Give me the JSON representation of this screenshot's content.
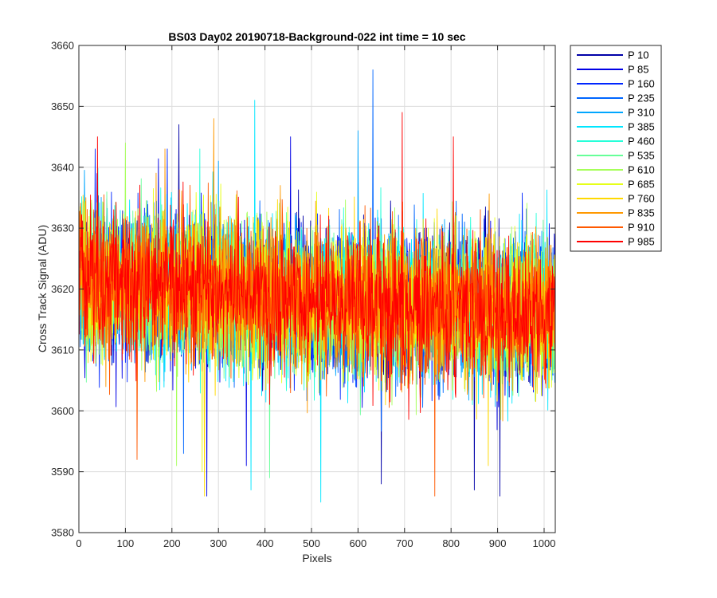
{
  "chart_data": {
    "type": "line",
    "title": "BS03 Day02 20190718-Background-022 int time = 10 sec",
    "xlabel": "Pixels",
    "ylabel": "Cross Track Signal (ADU)",
    "xlim": [
      0,
      1024
    ],
    "ylim": [
      3580,
      3660
    ],
    "xticks": [
      0,
      100,
      200,
      300,
      400,
      500,
      600,
      700,
      800,
      900,
      1000
    ],
    "yticks": [
      3580,
      3590,
      3600,
      3610,
      3620,
      3630,
      3640,
      3650,
      3660
    ],
    "grid": true,
    "legend_location": "outside-top-right",
    "noise": {
      "mean_start": 3622,
      "mean_mid": 3618,
      "mean_end": 3616,
      "std": 6
    },
    "series": [
      {
        "name": "P 10",
        "color": "#0000a8",
        "spikes": [
          [
            215,
            3647
          ],
          [
            650,
            3588
          ],
          [
            850,
            3587
          ],
          [
            905,
            3586
          ]
        ]
      },
      {
        "name": "P 85",
        "color": "#0000e6",
        "spikes": [
          [
            275,
            3586
          ],
          [
            455,
            3645
          ],
          [
            360,
            3591
          ]
        ]
      },
      {
        "name": "P 160",
        "color": "#0026ff",
        "spikes": [
          [
            35,
            3643
          ],
          [
            190,
            3643
          ]
        ]
      },
      {
        "name": "P 235",
        "color": "#0066ff",
        "spikes": [
          [
            632,
            3656
          ],
          [
            225,
            3593
          ]
        ]
      },
      {
        "name": "P 310",
        "color": "#00a6ff",
        "spikes": [
          [
            300,
            3641
          ],
          [
            600,
            3646
          ]
        ]
      },
      {
        "name": "P 385",
        "color": "#00e6ff",
        "spikes": [
          [
            378,
            3651
          ],
          [
            520,
            3585
          ],
          [
            370,
            3587
          ]
        ]
      },
      {
        "name": "P 460",
        "color": "#26ffd9",
        "spikes": [
          [
            260,
            3643
          ]
        ]
      },
      {
        "name": "P 535",
        "color": "#66ff99",
        "spikes": [
          [
            410,
            3589
          ]
        ]
      },
      {
        "name": "P 610",
        "color": "#a6ff59",
        "spikes": [
          [
            100,
            3644
          ],
          [
            210,
            3591
          ]
        ]
      },
      {
        "name": "P 685",
        "color": "#e6ff19",
        "spikes": [
          [
            265,
            3590
          ]
        ]
      },
      {
        "name": "P 760",
        "color": "#ffd900",
        "spikes": [
          [
            270,
            3586
          ],
          [
            880,
            3591
          ]
        ]
      },
      {
        "name": "P 835",
        "color": "#ff9900",
        "spikes": [
          [
            290,
            3648
          ],
          [
            185,
            3643
          ]
        ]
      },
      {
        "name": "P 910",
        "color": "#ff5900",
        "spikes": [
          [
            765,
            3586
          ],
          [
            125,
            3592
          ]
        ]
      },
      {
        "name": "P 985",
        "color": "#ff0000",
        "spikes": [
          [
            40,
            3645
          ],
          [
            695,
            3649
          ],
          [
            805,
            3645
          ]
        ]
      }
    ]
  }
}
